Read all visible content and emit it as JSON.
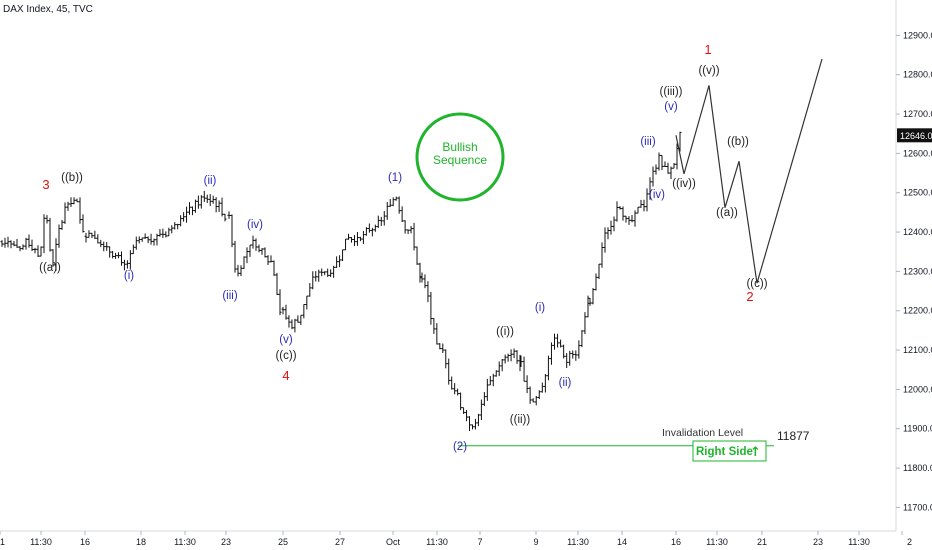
{
  "header": {
    "title": "DAX Index, 45, TVC"
  },
  "colors": {
    "black_wave": "#222222",
    "blue_wave": "#2b2bb8",
    "red_wave": "#e01010",
    "green": "#1fb42c",
    "bar": "#111111",
    "projection": "#333333"
  },
  "chart_data": {
    "type": "ohlc",
    "y_ticks": [
      "12900.0",
      "12800.0",
      "12700.0",
      "12600.0",
      "12500.0",
      "12400.0",
      "12300.0",
      "12200.0",
      "12100.0",
      "12000.0",
      "11900.0",
      "11800.0",
      "11700.0"
    ],
    "last_price": "12646.0",
    "x_ticks": [
      "1",
      "11:30",
      "16",
      "18",
      "11:30",
      "23",
      "25",
      "27",
      "Oct",
      "11:30",
      "7",
      "9",
      "11:30",
      "14",
      "16",
      "11:30",
      "21",
      "23",
      "11:30",
      "2"
    ],
    "ylim": [
      11640,
      12990
    ],
    "invalidation": {
      "label": "Invalidation Level",
      "value": "11877",
      "price": 11877
    },
    "right_side_label": "Right Side",
    "right_side_arrow": "↑",
    "sequence_circle": {
      "line1": "Bullish",
      "line2": "Sequence"
    },
    "projection_path": [
      {
        "label": "start",
        "price": 12646
      },
      {
        "label": "((iv))",
        "price": 12548
      },
      {
        "label": "((v)) / 1",
        "price": 12773
      },
      {
        "label": "((a))",
        "price": 12462
      },
      {
        "label": "((b))",
        "price": 12580
      },
      {
        "label": "((c)) / 2",
        "price": 12270
      },
      {
        "label": "end",
        "price": 12840
      }
    ],
    "wave_labels": [
      {
        "text": "3",
        "color": "red"
      },
      {
        "text": "((b))",
        "color": "black"
      },
      {
        "text": "((a))",
        "color": "black"
      },
      {
        "text": "(i)",
        "color": "blue"
      },
      {
        "text": "(ii)",
        "color": "blue"
      },
      {
        "text": "(iii)",
        "color": "blue"
      },
      {
        "text": "(iv)",
        "color": "blue"
      },
      {
        "text": "(v)",
        "color": "blue"
      },
      {
        "text": "((c))",
        "color": "black"
      },
      {
        "text": "4",
        "color": "red"
      },
      {
        "text": "(1)",
        "color": "blue"
      },
      {
        "text": "(2)",
        "color": "blue"
      },
      {
        "text": "((i))",
        "color": "black"
      },
      {
        "text": "((ii))",
        "color": "black"
      },
      {
        "text": "(i)",
        "color": "blue"
      },
      {
        "text": "(ii)",
        "color": "blue"
      },
      {
        "text": "(iii)",
        "color": "blue"
      },
      {
        "text": "(iv)",
        "color": "blue"
      },
      {
        "text": "(v)",
        "color": "blue"
      },
      {
        "text": "((iii))",
        "color": "black"
      },
      {
        "text": "((iv))",
        "color": "black"
      },
      {
        "text": "((v))",
        "color": "black"
      },
      {
        "text": "1",
        "color": "red"
      },
      {
        "text": "((a))",
        "color": "black"
      },
      {
        "text": "((b))",
        "color": "black"
      },
      {
        "text": "((c))",
        "color": "black"
      },
      {
        "text": "2",
        "color": "red"
      }
    ],
    "price_path": [
      12375,
      12380,
      12370,
      12350,
      12380,
      12360,
      12330,
      12470,
      12300,
      12390,
      12460,
      12480,
      12470,
      12400,
      12390,
      12360,
      12345,
      12305,
      12370,
      12380,
      12390,
      12400,
      12420,
      12450,
      12470,
      12490,
      12480,
      12440,
      12285,
      12340,
      12370,
      12360,
      12340,
      12320,
      12200,
      12160,
      12180,
      12240,
      12290,
      12300,
      12295,
      12340,
      12390,
      12380,
      12390,
      12410,
      12420,
      12460,
      12495,
      12420,
      12395,
      12280,
      12220,
      12120,
      12090,
      12020,
      11990,
      11940,
      11900,
      11930,
      11990,
      12030,
      12060,
      12080,
      12100,
      12060,
      12010,
      11965,
      11980,
      12020,
      12090,
      12130,
      12110,
      12070,
      12100,
      12090,
      12160,
      12220,
      12290,
      12380,
      12420,
      12470,
      12440,
      12420,
      12460,
      12480,
      12550,
      12590,
      12550,
      12570,
      12646
    ]
  }
}
